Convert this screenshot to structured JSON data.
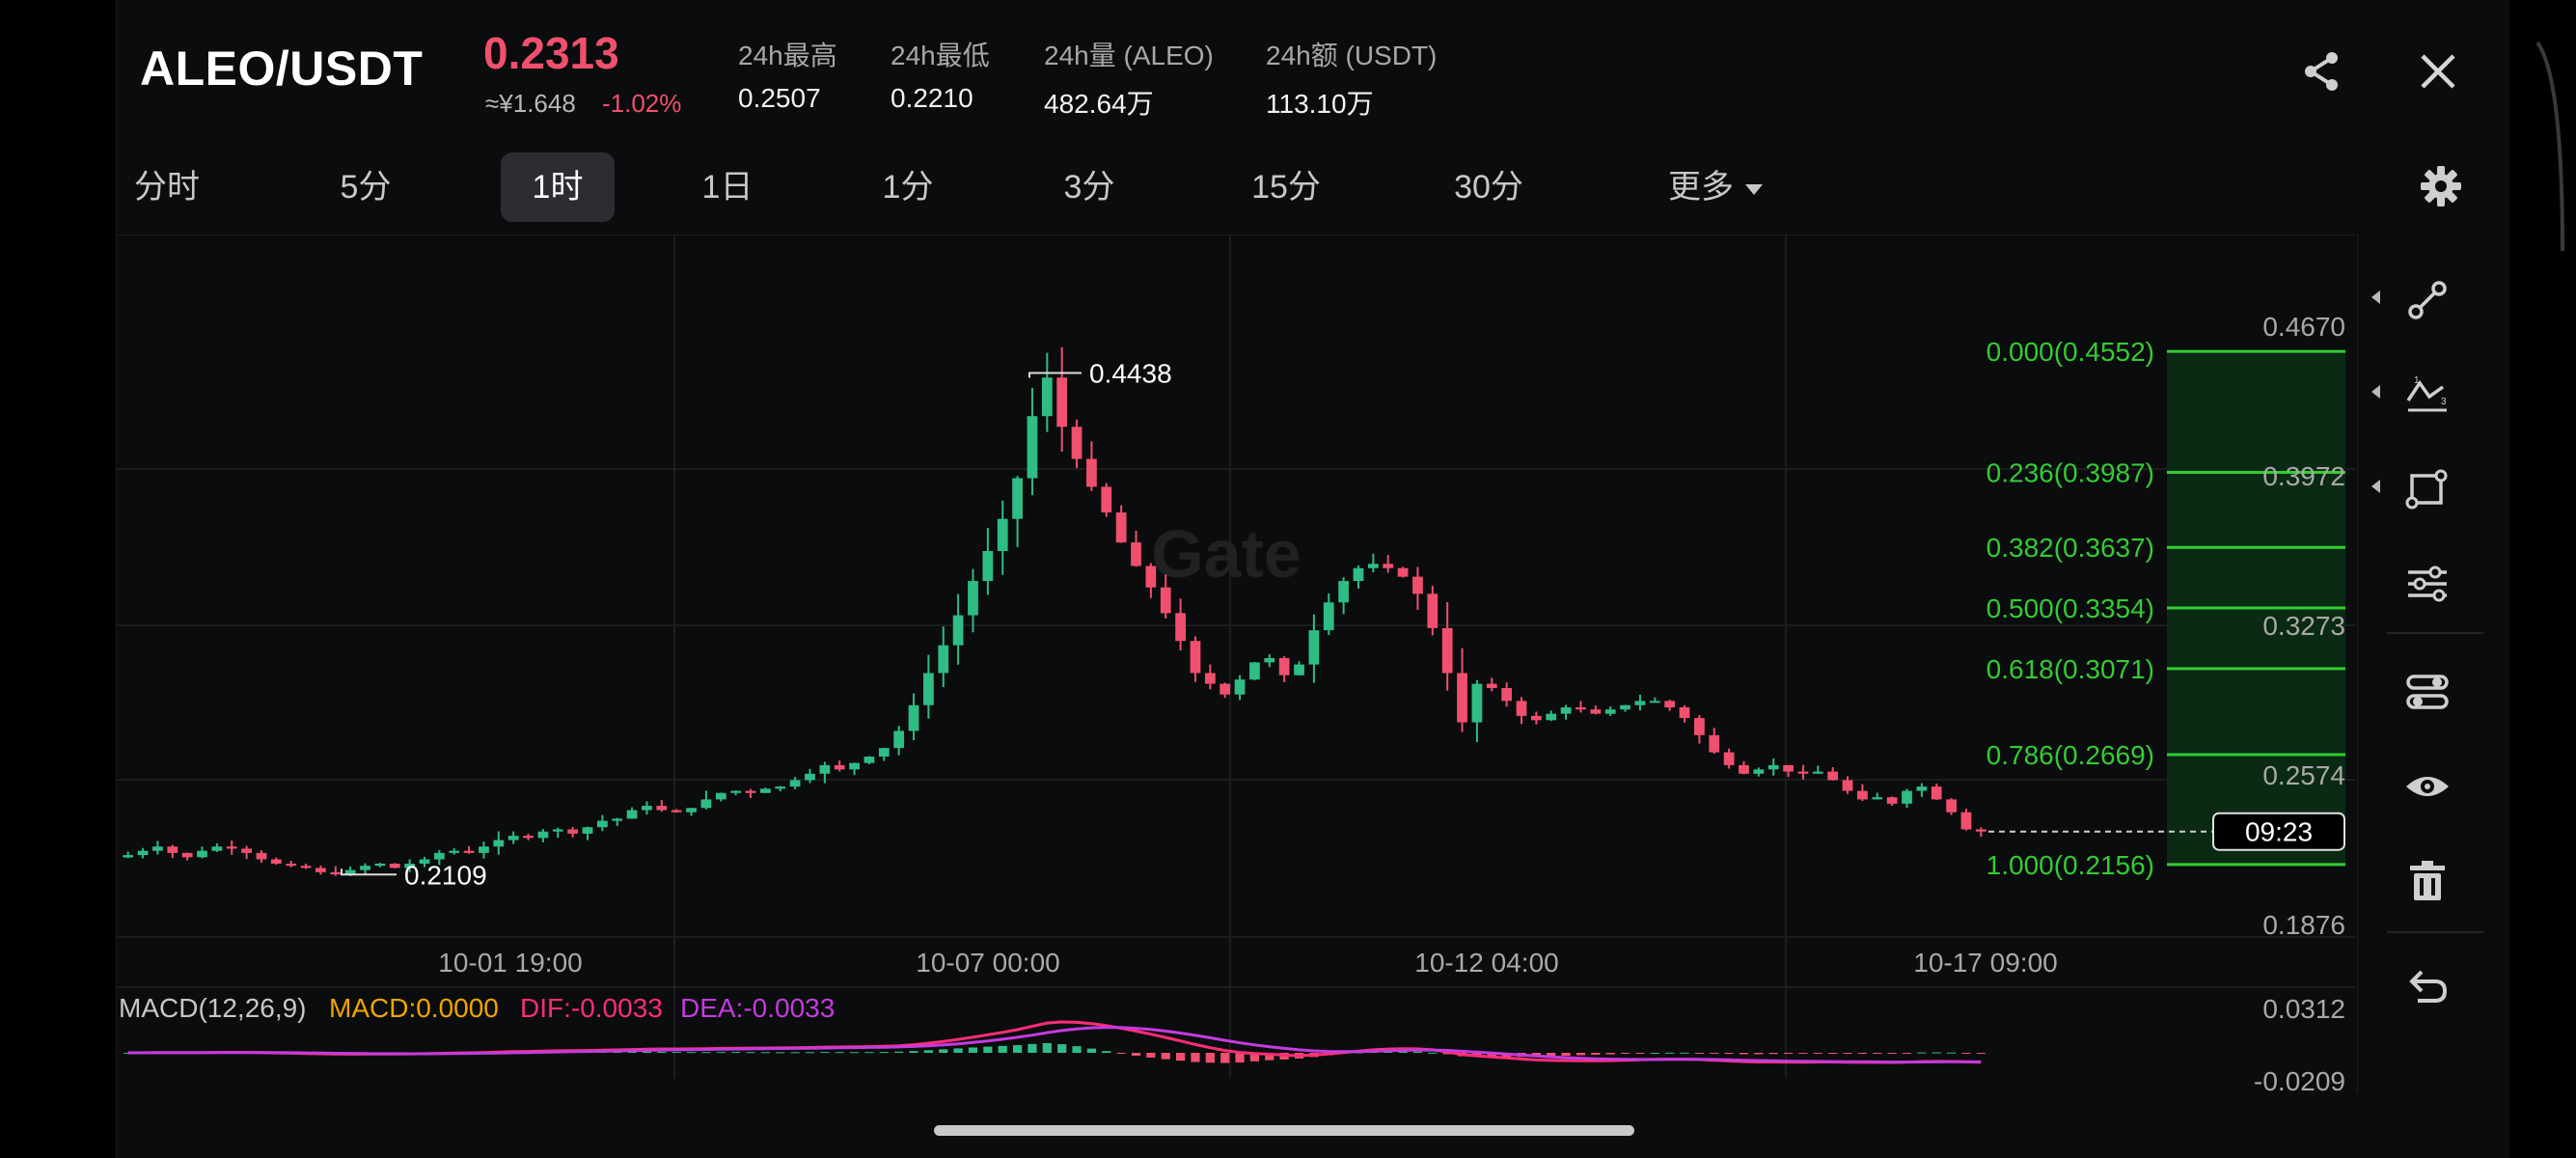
{
  "header": {
    "pair": "ALEO/USDT",
    "price": "0.2313",
    "cny": "≈¥1.648",
    "change": "-1.02%",
    "stats": [
      {
        "label": "24h最高",
        "value": "0.2507"
      },
      {
        "label": "24h最低",
        "value": "0.2210"
      },
      {
        "label": "24h量 (ALEO)",
        "value": "482.64万"
      },
      {
        "label": "24h额 (USDT)",
        "value": "113.10万"
      }
    ],
    "share_icon": "share-icon",
    "close_icon": "close-icon"
  },
  "tabs": [
    {
      "label": "分时"
    },
    {
      "label": "5分"
    },
    {
      "label": "1时",
      "active": true
    },
    {
      "label": "1日"
    },
    {
      "label": "1分"
    },
    {
      "label": "3分"
    },
    {
      "label": "15分"
    },
    {
      "label": "30分"
    },
    {
      "label": "更多"
    }
  ],
  "settings_icon": "gear-icon",
  "chart_data": {
    "type": "candlestick",
    "interval": "1时",
    "x_labels": [
      "10-01 19:00",
      "10-07 00:00",
      "10-12 04:00",
      "10-17 09:00"
    ],
    "y_ticks": [
      "0.4670",
      "0.3972",
      "0.3273",
      "0.2574",
      "0.1876"
    ],
    "ylim": [
      0.1876,
      0.467
    ],
    "series_close": [
      0.22,
      0.222,
      0.224,
      0.221,
      0.219,
      0.222,
      0.224,
      0.223,
      0.221,
      0.218,
      0.216,
      0.215,
      0.214,
      0.212,
      0.211,
      0.213,
      0.215,
      0.216,
      0.214,
      0.216,
      0.218,
      0.221,
      0.222,
      0.221,
      0.224,
      0.227,
      0.229,
      0.228,
      0.231,
      0.232,
      0.23,
      0.233,
      0.236,
      0.237,
      0.241,
      0.243,
      0.241,
      0.24,
      0.242,
      0.246,
      0.249,
      0.25,
      0.249,
      0.251,
      0.252,
      0.255,
      0.258,
      0.262,
      0.26,
      0.263,
      0.266,
      0.27,
      0.278,
      0.29,
      0.305,
      0.318,
      0.332,
      0.348,
      0.362,
      0.377,
      0.396,
      0.425,
      0.443,
      0.42,
      0.405,
      0.392,
      0.38,
      0.366,
      0.355,
      0.345,
      0.333,
      0.32,
      0.305,
      0.3,
      0.295,
      0.302,
      0.31,
      0.312,
      0.304,
      0.309,
      0.325,
      0.338,
      0.348,
      0.354,
      0.356,
      0.354,
      0.35,
      0.342,
      0.326,
      0.305,
      0.282,
      0.3,
      0.298,
      0.292,
      0.285,
      0.283,
      0.286,
      0.289,
      0.288,
      0.286,
      0.288,
      0.29,
      0.292,
      0.292,
      0.289,
      0.284,
      0.276,
      0.268,
      0.262,
      0.258,
      0.26,
      0.262,
      0.259,
      0.258,
      0.259,
      0.255,
      0.25,
      0.246,
      0.247,
      0.244,
      0.25,
      0.252,
      0.246,
      0.24,
      0.232,
      0.231
    ],
    "high_label": "0.4438",
    "low_label": "0.2109",
    "current_time_label": "09:23",
    "fibonacci": [
      {
        "label": "0.000(0.4552)",
        "value": 0.4552
      },
      {
        "label": "0.236(0.3987)",
        "value": 0.3987
      },
      {
        "label": "0.382(0.3637)",
        "value": 0.3637
      },
      {
        "label": "0.500(0.3354)",
        "value": 0.3354
      },
      {
        "label": "0.618(0.3071)",
        "value": 0.3071
      },
      {
        "label": "0.786(0.2669)",
        "value": 0.2669
      },
      {
        "label": "1.000(0.2156)",
        "value": 0.2156
      }
    ],
    "watermark": "Gate",
    "macd": {
      "title": "MACD(12,26,9)",
      "macd_label": "MACD:0.0000",
      "dif_label": "DIF:-0.0033",
      "dea_label": "DEA:-0.0033",
      "y_ticks": [
        "0.0312",
        "-0.0209"
      ]
    },
    "colors": {
      "up": "#2ebd85",
      "down": "#f0506e",
      "fib": "#33cc33",
      "dif": "#ff2d78",
      "dea": "#c43be0",
      "macd": "#f0a500"
    }
  },
  "toolbar": {
    "icons": [
      "trendline-icon",
      "fib-wave-icon",
      "rectangle-tool-icon",
      "indicator-sliders-icon",
      "drawing-list-icon",
      "visibility-eye-icon",
      "trash-icon",
      "undo-icon"
    ]
  }
}
